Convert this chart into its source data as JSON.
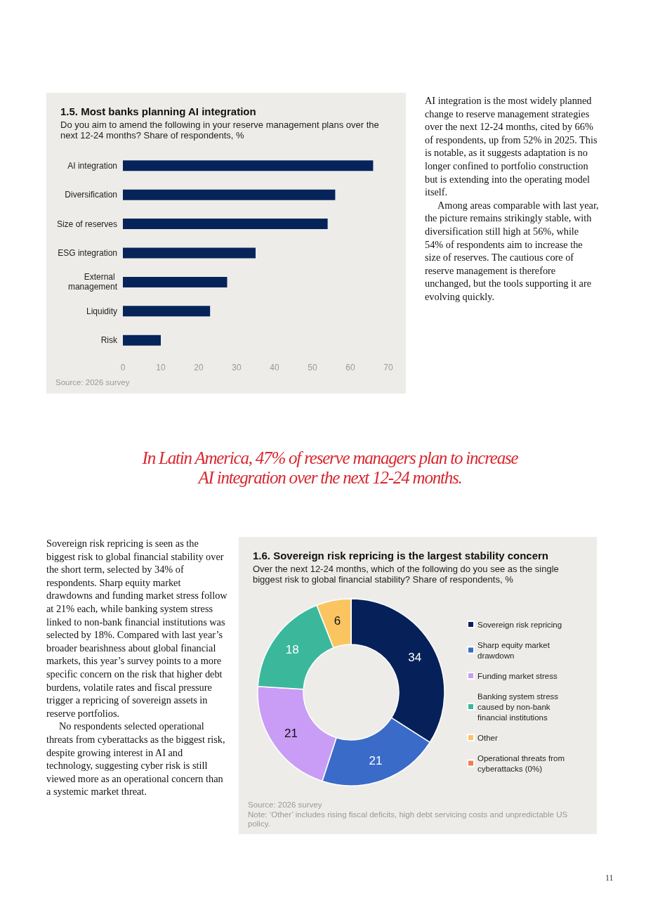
{
  "chart_data": [
    {
      "type": "bar",
      "orientation": "horizontal",
      "title": "1.5. Most banks planning AI integration",
      "subtitle": "Do you aim to amend the following in your reserve management plans over the next 12-24 months? Share of respondents, %",
      "categories": [
        "AI integration",
        "Diversification",
        "Size of reserves",
        "ESG integration",
        "External management",
        "Liquidity",
        "Risk"
      ],
      "values": [
        66,
        56,
        54,
        35,
        27.5,
        23,
        10
      ],
      "color": "#06245a",
      "xlim": [
        0,
        70
      ],
      "xticks": [
        0,
        10,
        20,
        30,
        40,
        50,
        60,
        70
      ],
      "annotations": [
        "Source: 2026 survey"
      ]
    },
    {
      "type": "donut",
      "title": "1.6. Sovereign risk repricing is the largest stability concern",
      "subtitle": "Over the next 12-24 months, which of the following do you see as the single biggest risk to global financial stability? Share of respondents, %",
      "categories": [
        "Sovereign risk repricing",
        "Sharp equity market drawdown",
        "Funding market stress",
        "Banking system stress caused by non-bank financial institutions",
        "Other",
        "Operational threats from cyberattacks (0%)"
      ],
      "values": [
        34,
        21,
        21,
        18,
        6,
        0
      ],
      "colors": [
        "#06215a",
        "#3a6bc8",
        "#c99cf5",
        "#3bb89b",
        "#fac561",
        "#ef7d53"
      ],
      "value_labels": [
        "34",
        "21",
        "21",
        "18",
        "6",
        null
      ],
      "legend": "right",
      "annotations": [
        "Source: 2026 survey",
        "Note: ‘Other’ includes rising fiscal deficits, high debt servicing costs and unpredictable US policy."
      ]
    },
    {
      "type": "other",
      "annotations": [
        "AI integration is the most widely planned change to reserve management strategies over the next 12-24 months, cited by 66% of respondents, up from 52% in 2025. This is notable, as it suggests adaptation is no longer confined to portfolio construction but is extending into the operating model itself.\nAmong areas comparable with last year, the picture remains strikingly stable, with diversification still high at 56%, while 54% of respondents aim to increase the size of reserves. The cautious core of reserve management is therefore unchanged, but the tools supporting it are evolving quickly.",
        "In Latin America, 47% of reserve managers plan to increase AI integration over the next 12-24 months.",
        "Sovereign risk repricing is seen as the biggest risk to global financial stability over the short term, selected by 34% of respondents. Sharp equity market drawdowns and funding market stress follow at 21% each, while banking system stress linked to non-bank financial institutions was selected by 18%. Compared with last year’s broader bearishness about global financial markets, this year’s survey points to a more specific concern on the risk that higher debt burdens, volatile rates and fiscal pressure trigger a repricing of sovereign assets in reserve portfolios.\nNo respondents selected operational threats from cyberattacks as the biggest risk, despite growing interest in AI and technology, suggesting cyber risk is still viewed more as an operational concern than a systemic market threat.",
        "11"
      ]
    }
  ]
}
